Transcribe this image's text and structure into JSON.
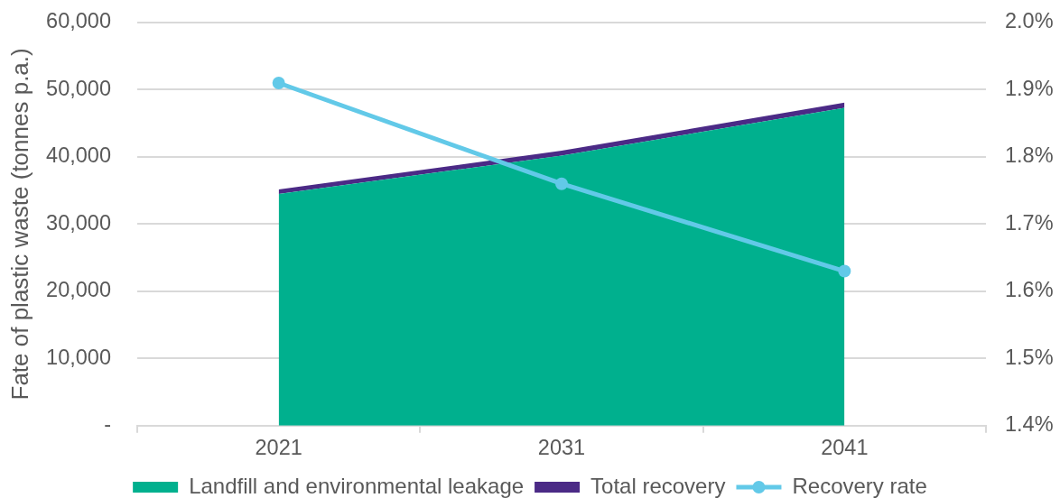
{
  "chart_data": {
    "type": "area",
    "ylabel": "Fate of plastic waste (tonnes p.a.)",
    "categories": [
      "2021",
      "2031",
      "2041"
    ],
    "stacked": true,
    "series": [
      {
        "name": "Landfill and environmental leakage",
        "color": "#00b08e",
        "values": [
          34500,
          40200,
          47300
        ]
      },
      {
        "name": "Total recovery",
        "color": "#4b2a86",
        "values": [
          670,
          720,
          780
        ]
      },
      {
        "name": "Recovery rate",
        "type": "line",
        "axis": "y2",
        "color": "#62c9e8",
        "marker": "circle",
        "values": [
          1.91,
          1.76,
          1.63
        ]
      }
    ],
    "ylim": [
      0,
      60000
    ],
    "yticks": [
      {
        "value": 0,
        "label": "-"
      },
      {
        "value": 10000,
        "label": "10,000"
      },
      {
        "value": 20000,
        "label": "20,000"
      },
      {
        "value": 30000,
        "label": "30,000"
      },
      {
        "value": 40000,
        "label": "40,000"
      },
      {
        "value": 50000,
        "label": "50,000"
      },
      {
        "value": 60000,
        "label": "60,000"
      }
    ],
    "y2lim": [
      1.4,
      2.0
    ],
    "y2ticks": [
      {
        "value": 1.4,
        "label": "1.4%"
      },
      {
        "value": 1.5,
        "label": "1.5%"
      },
      {
        "value": 1.6,
        "label": "1.6%"
      },
      {
        "value": 1.7,
        "label": "1.7%"
      },
      {
        "value": 1.8,
        "label": "1.8%"
      },
      {
        "value": 1.9,
        "label": "1.9%"
      },
      {
        "value": 2.0,
        "label": "2.0%"
      }
    ],
    "grid": "y",
    "legend": "bottom"
  }
}
